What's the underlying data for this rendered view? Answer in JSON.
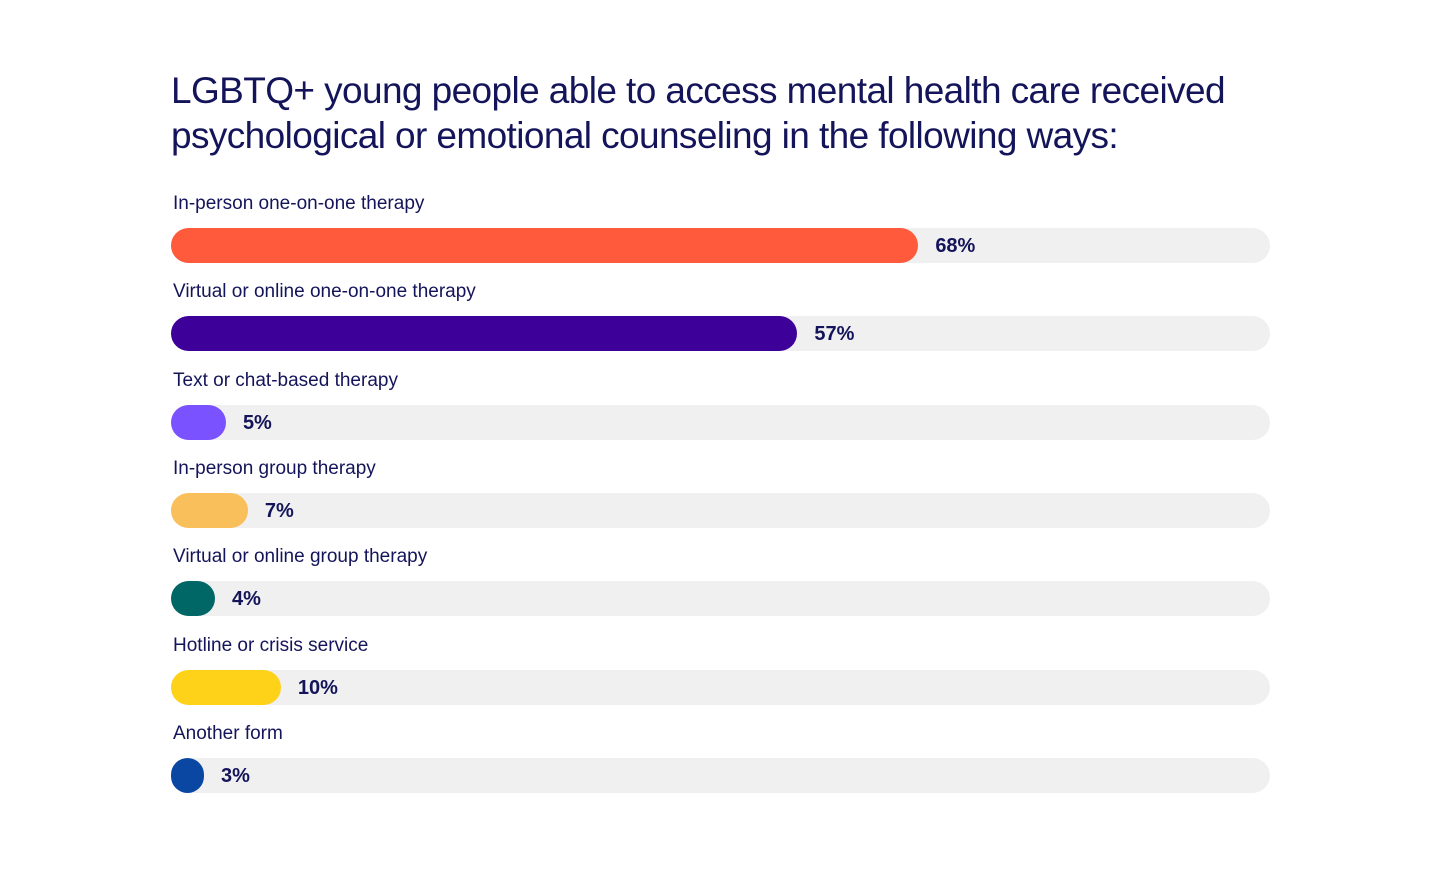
{
  "chart_data": {
    "type": "bar",
    "orientation": "horizontal",
    "title": "LGBTQ+ young people able to access mental health care received psychological or emotional counseling in the following ways:",
    "categories": [
      "In-person one-on-one therapy",
      "Virtual or online one-on-one therapy",
      "Text or chat-based therapy",
      "In-person group therapy",
      "Virtual or online group therapy",
      "Hotline or crisis service",
      "Another form"
    ],
    "values": [
      68,
      57,
      5,
      7,
      4,
      10,
      3
    ],
    "value_labels": [
      "68%",
      "57%",
      "5%",
      "7%",
      "4%",
      "10%",
      "3%"
    ],
    "colors": [
      "#ff5a3c",
      "#3d0099",
      "#7b52ff",
      "#f9bf5a",
      "#006666",
      "#ffd21a",
      "#0a47a3"
    ],
    "track_color": "#f0f0f0",
    "xlim": [
      0,
      100
    ],
    "grid": false
  }
}
